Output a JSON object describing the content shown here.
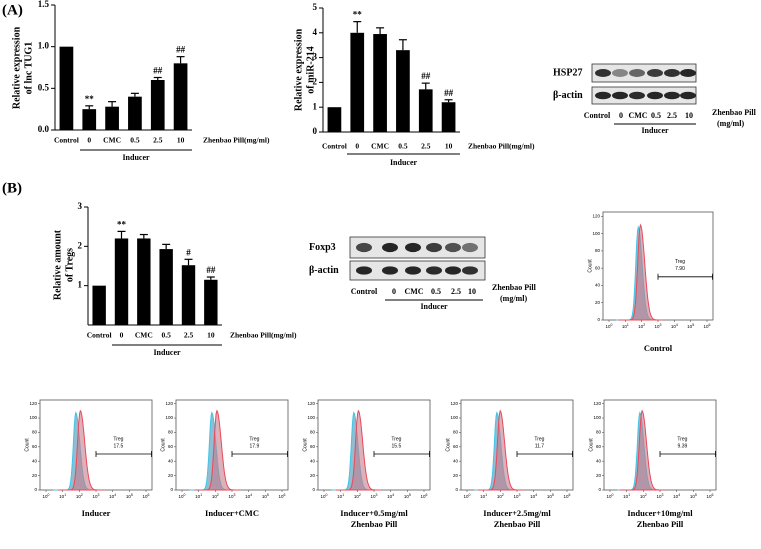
{
  "panel_labels": [
    "(A)",
    "(B)"
  ],
  "chart_data": [
    {
      "type": "bar",
      "y_label": [
        "Relative expression",
        "of lnc TUG1"
      ],
      "categories": [
        "Control",
        "0",
        "CMC",
        "0.5",
        "2.5",
        "10"
      ],
      "values": [
        1.0,
        0.25,
        0.28,
        0.4,
        0.6,
        0.8
      ],
      "errors": [
        null,
        0.04,
        0.06,
        0.04,
        0.03,
        0.08
      ],
      "annotations": [
        null,
        "**",
        null,
        null,
        "##",
        "##"
      ],
      "ylim": [
        0,
        1.5
      ],
      "yticks": [
        {
          "value": 0,
          "label": "0.0"
        },
        0.5,
        {
          "value": 1,
          "label": "1.0"
        },
        1.5
      ],
      "x_label": "Zhenbao Pill(mg/ml)",
      "group_label": "Inducer",
      "color": "#000000"
    },
    {
      "type": "bar",
      "y_label": [
        "Relative expression",
        "of miR-214"
      ],
      "categories": [
        "Control",
        "0",
        "CMC",
        "0.5",
        "2.5",
        "10"
      ],
      "values": [
        1.0,
        4.0,
        3.95,
        3.3,
        1.72,
        1.2
      ],
      "errors": [
        null,
        0.45,
        0.25,
        0.42,
        0.25,
        0.1
      ],
      "annotations": [
        null,
        "**",
        null,
        null,
        "##",
        "##"
      ],
      "ylim": [
        0,
        5
      ],
      "yticks": [
        0,
        1,
        2,
        3,
        4,
        5
      ],
      "x_label": "Zhenbao Pill(mg/ml)",
      "group_label": "Inducer",
      "color": "#000000"
    },
    {
      "type": "bar",
      "y_label": [
        "Relative amount",
        "of Tregs"
      ],
      "categories": [
        "Control",
        "0",
        "CMC",
        "0.5",
        "2.5",
        "10"
      ],
      "values": [
        1.0,
        2.2,
        2.2,
        1.93,
        1.52,
        1.15
      ],
      "errors": [
        null,
        0.18,
        0.1,
        0.12,
        0.15,
        0.07
      ],
      "annotations": [
        null,
        "**",
        null,
        null,
        "#",
        "##"
      ],
      "ylim": [
        0,
        3
      ],
      "yticks": [
        1,
        2,
        3
      ],
      "x_label": "Zhenbao Pill(mg/ml)",
      "group_label": "Inducer",
      "color": "#000000"
    }
  ],
  "blots": [
    {
      "rows": [
        "HSP27",
        "β-actin"
      ],
      "lanes": [
        "Control",
        "0",
        "CMC",
        "0.5",
        "2.5",
        "10"
      ],
      "group_label": "Inducer",
      "x_label": [
        "Zhenbao Pill",
        "(mg/ml)"
      ]
    },
    {
      "rows": [
        "Foxp3",
        "β-actin"
      ],
      "lanes": [
        "Control",
        "0",
        "CMC",
        "0.5",
        "2.5",
        "10"
      ],
      "group_label": "Inducer",
      "x_label": [
        "Zhenbao Pill",
        "(mg/ml)"
      ]
    }
  ],
  "flow": {
    "y_label": "Count",
    "ylim": [
      0,
      125
    ],
    "yticks": [
      0,
      20,
      40,
      60,
      80,
      100,
      120
    ],
    "xticks": [
      {
        "base": "10",
        "exp": "0"
      },
      {
        "base": "10",
        "exp": "1"
      },
      {
        "base": "10",
        "exp": "2"
      },
      {
        "base": "10",
        "exp": "3"
      },
      {
        "base": "10",
        "exp": "4"
      },
      {
        "base": "10",
        "exp": "5"
      },
      {
        "base": "10",
        "exp": "6"
      }
    ],
    "gate_label": "Treg",
    "plots": [
      {
        "caption": [
          "Control"
        ],
        "value": "7.90"
      },
      {
        "caption": [
          "Inducer"
        ],
        "value": "17.5"
      },
      {
        "caption": [
          "Inducer+CMC"
        ],
        "value": "17.9"
      },
      {
        "caption": [
          "Inducer+0.5mg/ml",
          "Zhenbao Pill"
        ],
        "value": "15.5"
      },
      {
        "caption": [
          "Inducer+2.5mg/ml",
          "Zhenbao Pill"
        ],
        "value": "11.7"
      },
      {
        "caption": [
          "Inducer+10mg/ml",
          "Zhenbao Pill"
        ],
        "value": "9.39"
      }
    ]
  }
}
